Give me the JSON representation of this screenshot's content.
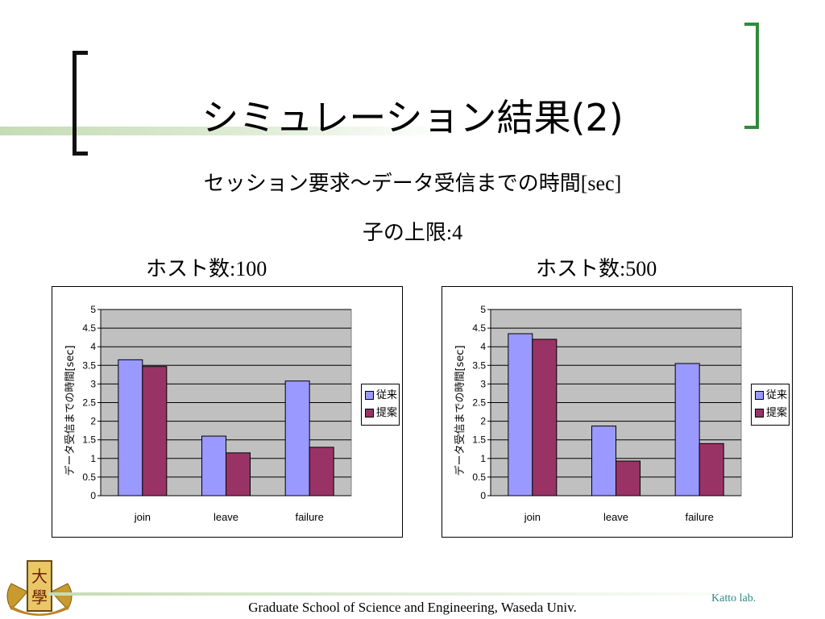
{
  "slide": {
    "title": "シミュレーション結果(2)",
    "subtitle_jp": "セッション要求～データ受信までの時間",
    "subtitle_unit": "[sec]",
    "limit_label": "子の上限",
    "limit_value": ":4",
    "host_left_label": "ホスト数",
    "host_left_value": ":100",
    "host_right_label": "ホスト数",
    "host_right_value": ":500",
    "footer": "Graduate School of Science and Engineering, Waseda Univ.",
    "lab": "Katto lab.",
    "logo_text": "大學"
  },
  "colors": {
    "series1": "#9999ff",
    "series2": "#993366",
    "plot_bg": "#c0c0c0",
    "accent_green": "#2e8b3a"
  },
  "chart_data": [
    {
      "type": "bar",
      "title": "",
      "ylabel": "データ受信までの時間[sec]",
      "categories": [
        "join",
        "leave",
        "failure"
      ],
      "ylim": [
        0,
        5
      ],
      "yticks": [
        "0",
        "0.5",
        "1",
        "1.5",
        "2",
        "2.5",
        "3",
        "3.5",
        "4",
        "4.5",
        "5"
      ],
      "series": [
        {
          "name": "従来",
          "values": [
            3.65,
            1.6,
            3.08
          ]
        },
        {
          "name": "提案",
          "values": [
            3.47,
            1.15,
            1.3
          ]
        }
      ],
      "legend": "right"
    },
    {
      "type": "bar",
      "title": "",
      "ylabel": "データ受信までの時間[sec]",
      "categories": [
        "join",
        "leave",
        "failure"
      ],
      "ylim": [
        0,
        5
      ],
      "yticks": [
        "0",
        "0.5",
        "1",
        "1.5",
        "2",
        "2.5",
        "3",
        "3.5",
        "4",
        "4.5",
        "5"
      ],
      "series": [
        {
          "name": "従来",
          "values": [
            4.35,
            1.87,
            3.55
          ]
        },
        {
          "name": "提案",
          "values": [
            4.2,
            0.93,
            1.4
          ]
        }
      ],
      "legend": "right"
    }
  ]
}
